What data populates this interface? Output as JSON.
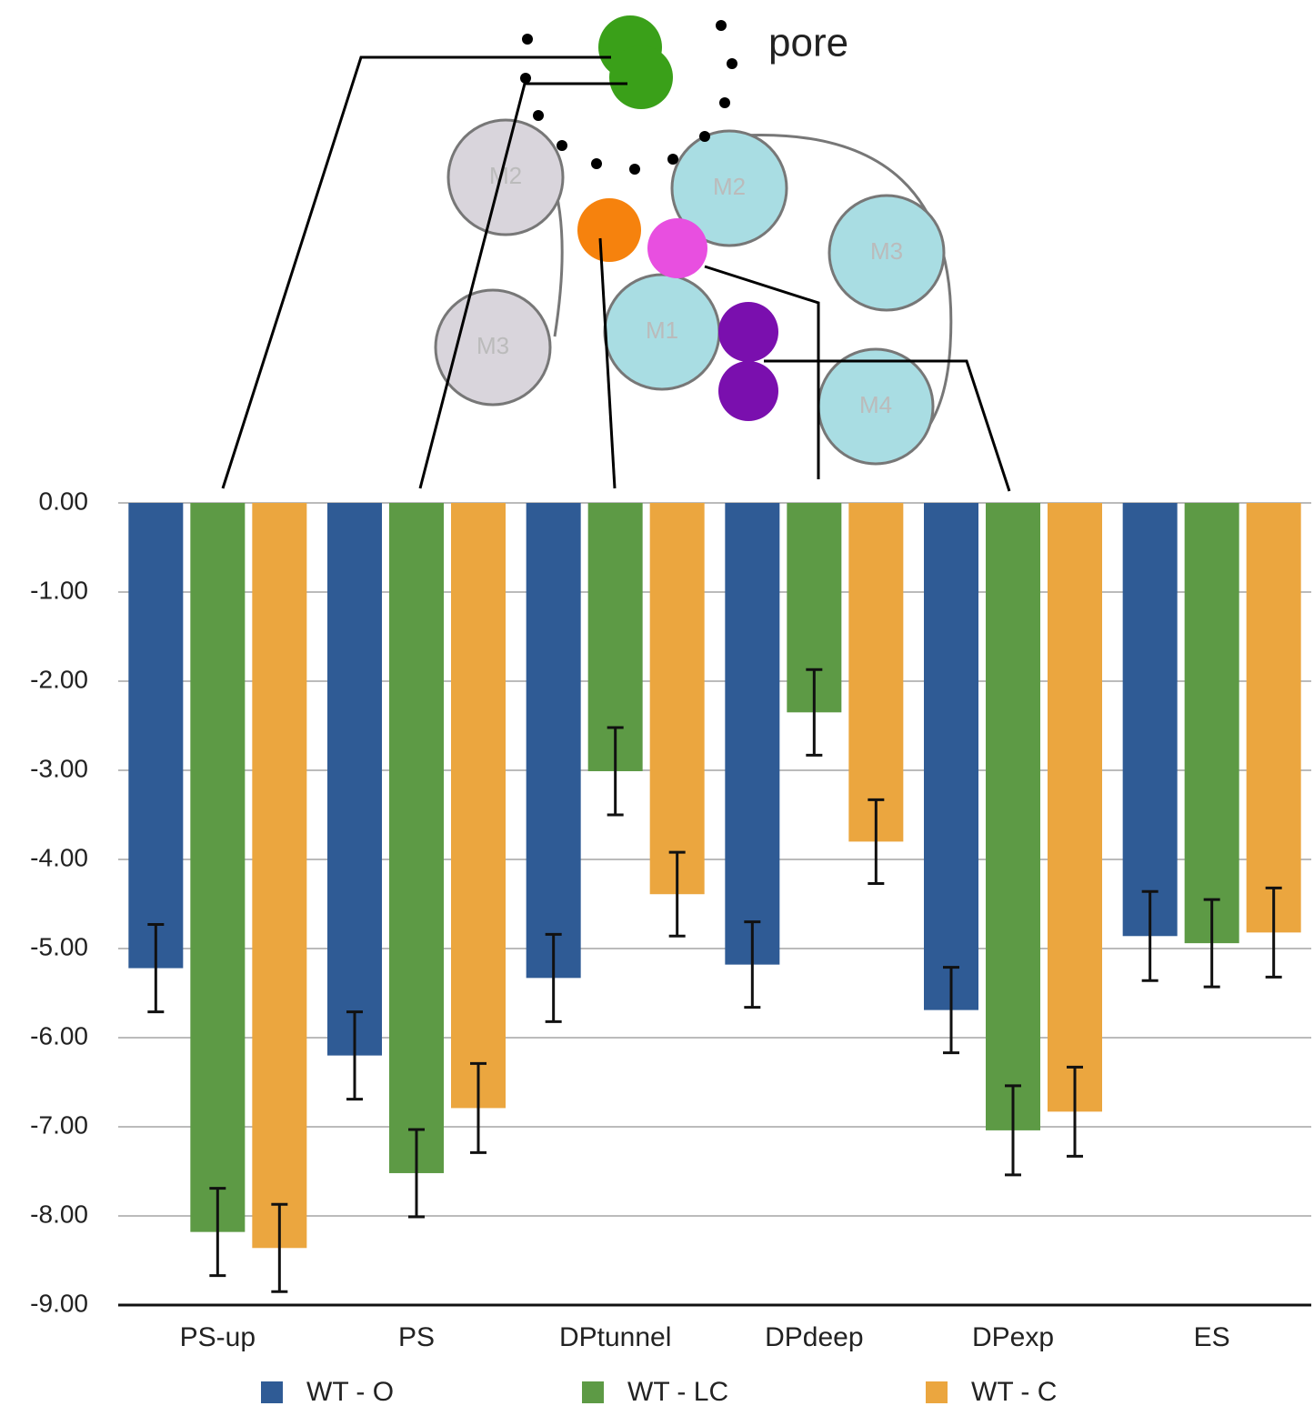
{
  "chart_data": {
    "type": "bar",
    "categories": [
      "PS-up",
      "PS",
      "DPtunnel",
      "DPdeep",
      "DPexp",
      "ES"
    ],
    "series": [
      {
        "name": "WT - O",
        "color": "#2f5b95",
        "values": [
          -5.22,
          -6.2,
          -5.33,
          -5.18,
          -5.69,
          -4.86
        ],
        "errors": [
          0.49,
          0.49,
          0.49,
          0.48,
          0.48,
          0.5
        ]
      },
      {
        "name": "WT - LC",
        "color": "#5d9a45",
        "values": [
          -8.18,
          -7.52,
          -3.01,
          -2.35,
          -7.04,
          -4.94
        ],
        "errors": [
          0.49,
          0.49,
          0.49,
          0.48,
          0.5,
          0.49
        ]
      },
      {
        "name": "WT - C",
        "color": "#eba63f",
        "values": [
          -8.36,
          -6.79,
          -4.39,
          -3.8,
          -6.83,
          -4.82
        ],
        "errors": [
          0.49,
          0.5,
          0.47,
          0.47,
          0.5,
          0.5
        ]
      }
    ],
    "ylim": [
      -9,
      0
    ],
    "yticks": [
      {
        "value": 0,
        "label": "0.00"
      },
      {
        "value": -1,
        "label": "-1.00"
      },
      {
        "value": -2,
        "label": "-2.00"
      },
      {
        "value": -3,
        "label": "-3.00"
      },
      {
        "value": -4,
        "label": "-4.00"
      },
      {
        "value": -5,
        "label": "-5.00"
      },
      {
        "value": -6,
        "label": "-6.00"
      },
      {
        "value": -7,
        "label": "-7.00"
      },
      {
        "value": -8,
        "label": "-8.00"
      },
      {
        "value": -9,
        "label": "-9.00"
      }
    ],
    "grid": true
  },
  "diagram": {
    "pore_label": "pore",
    "helix_labels": [
      "M2",
      "M3",
      "M2",
      "M3",
      "M1",
      "M4"
    ]
  }
}
